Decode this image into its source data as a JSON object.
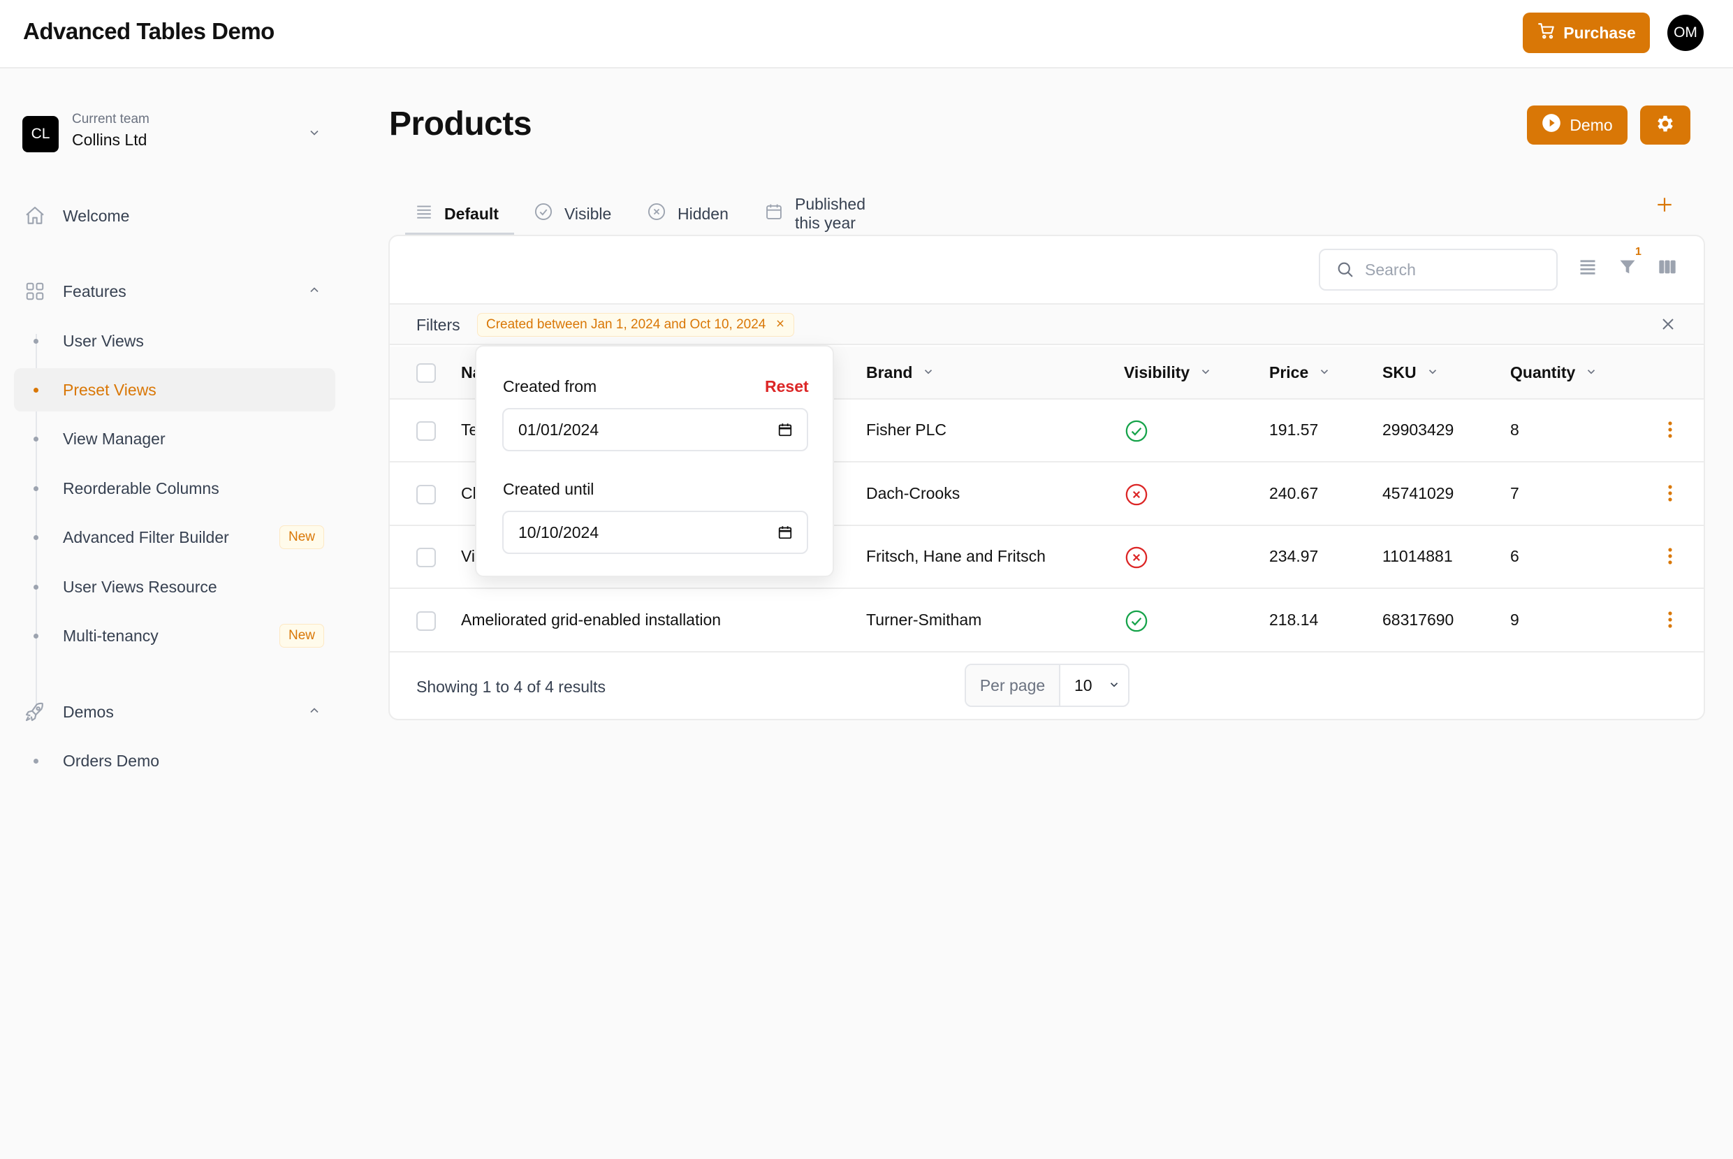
{
  "app": {
    "title": "Advanced Tables Demo",
    "purchase_label": "Purchase",
    "user_initials": "OM"
  },
  "colors": {
    "accent": "#d97706",
    "success": "#16a34a",
    "danger": "#dc2626"
  },
  "sidebar": {
    "team": {
      "caption": "Current team",
      "name": "Collins Ltd",
      "initials": "CL"
    },
    "welcome": {
      "label": "Welcome",
      "icon": "home-icon"
    },
    "features": {
      "label": "Features",
      "icon": "grid-icon",
      "items": [
        {
          "label": "User Views",
          "active": false
        },
        {
          "label": "Preset Views",
          "active": true
        },
        {
          "label": "View Manager",
          "active": false
        },
        {
          "label": "Reorderable Columns",
          "active": false
        },
        {
          "label": "Advanced Filter Builder",
          "active": false,
          "badge": "New"
        },
        {
          "label": "User Views Resource",
          "active": false
        },
        {
          "label": "Multi-tenancy",
          "active": false,
          "badge": "New"
        }
      ]
    },
    "demos": {
      "label": "Demos",
      "icon": "rocket-icon",
      "items": [
        {
          "label": "Orders Demo",
          "active": false
        }
      ]
    }
  },
  "page": {
    "title": "Products",
    "demo_label": "Demo"
  },
  "tabs": [
    {
      "label": "Default",
      "icon": "list-icon",
      "active": true
    },
    {
      "label": "Visible",
      "icon": "check-circle-icon",
      "active": false
    },
    {
      "label": "Hidden",
      "icon": "x-circle-icon",
      "active": false
    },
    {
      "label": "Published this year",
      "icon": "calendar-icon",
      "active": false
    }
  ],
  "table": {
    "search_placeholder": "Search",
    "filter_count": "1",
    "filters_label": "Filters",
    "filter_chip": "Created between Jan 1, 2024 and Oct 10, 2024",
    "columns": {
      "name": "Na",
      "brand": "Brand",
      "visibility": "Visibility",
      "price": "Price",
      "sku": "SKU",
      "quantity": "Quantity"
    },
    "rows": [
      {
        "name": "Te",
        "brand": "Fisher PLC",
        "visible": true,
        "price": "191.57",
        "sku": "29903429",
        "quantity": "8"
      },
      {
        "name": "Cl",
        "brand": "Dach-Crooks",
        "visible": false,
        "price": "240.67",
        "sku": "45741029",
        "quantity": "7"
      },
      {
        "name": "Vi",
        "brand": "Fritsch, Hane and Fritsch",
        "visible": false,
        "price": "234.97",
        "sku": "11014881",
        "quantity": "6"
      },
      {
        "name": "Ameliorated grid-enabled installation",
        "brand": "Turner-Smitham",
        "visible": true,
        "price": "218.14",
        "sku": "68317690",
        "quantity": "9"
      }
    ],
    "footer": {
      "showing": "Showing 1 to 4 of 4 results",
      "per_page_label": "Per page",
      "per_page_value": "10"
    }
  },
  "date_popover": {
    "from_label": "Created from",
    "reset_label": "Reset",
    "from_value": "01/01/2024",
    "until_label": "Created until",
    "until_value": "10/10/2024"
  }
}
